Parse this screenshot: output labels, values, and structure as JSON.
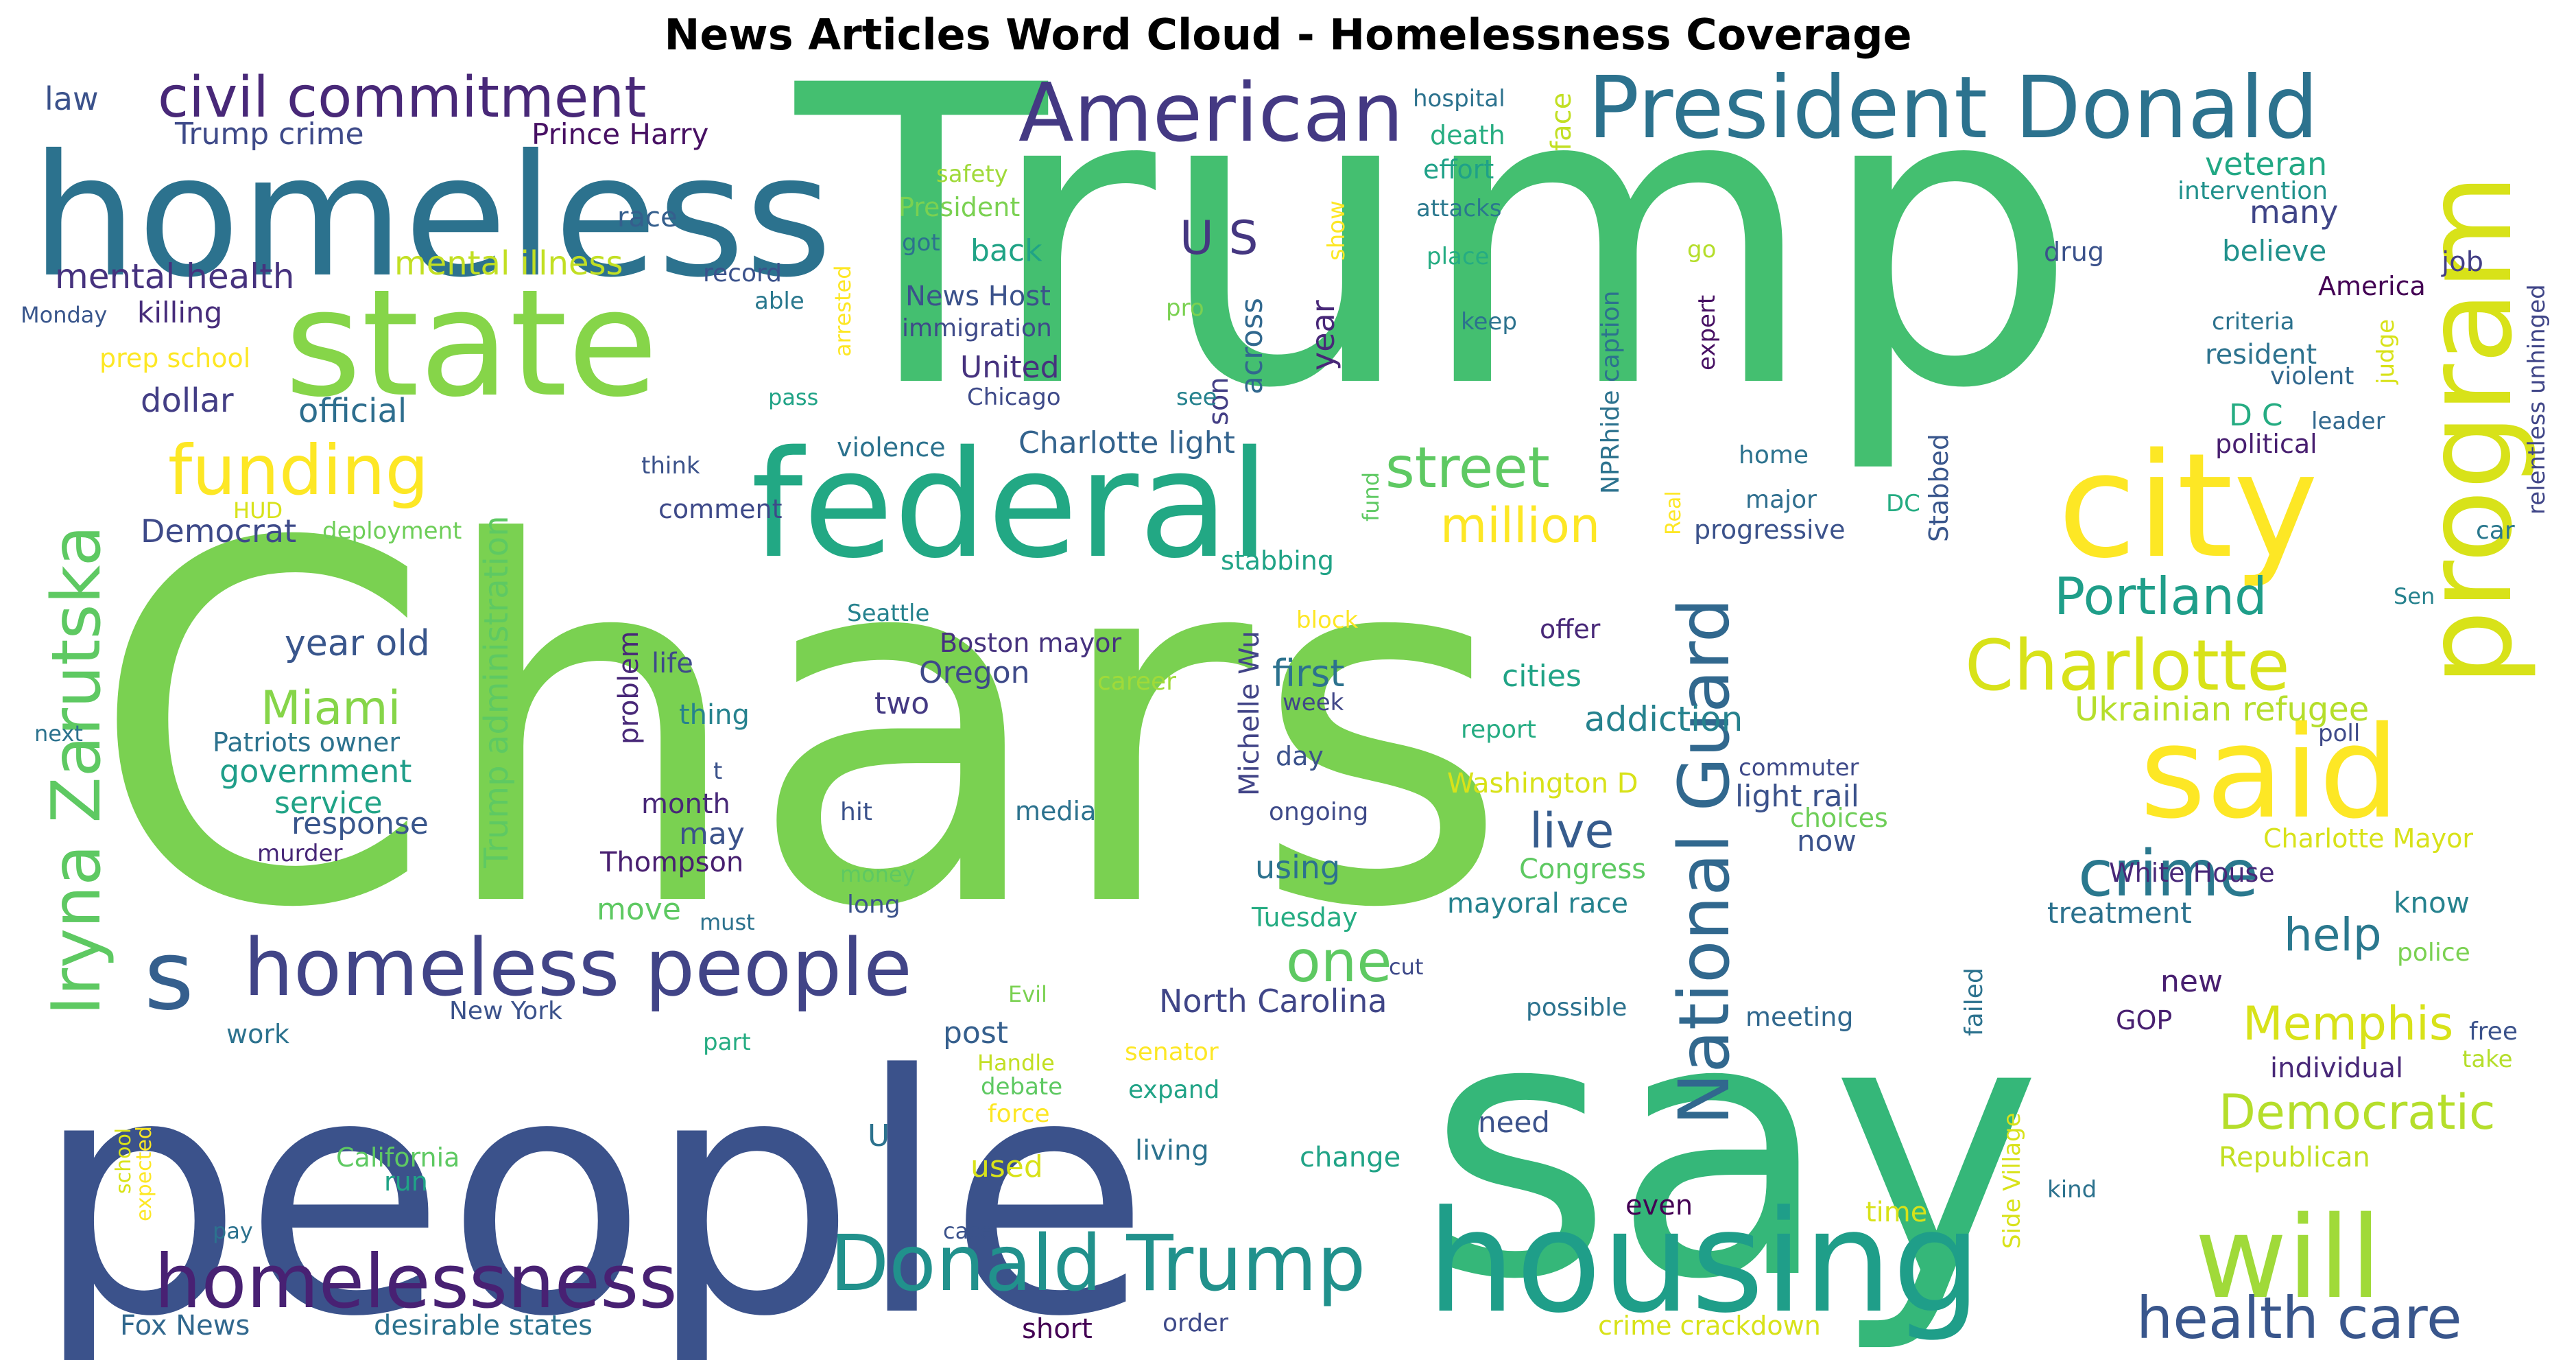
{
  "title": "News Articles Word Cloud - Homelessness Coverage",
  "words": [
    {
      "text": "Chars",
      "color": "#7ad151"
    },
    {
      "text": "Trump",
      "color": "#44bf70"
    },
    {
      "text": "people",
      "color": "#3b528b"
    },
    {
      "text": "say",
      "color": "#35b779"
    },
    {
      "text": "homeless",
      "color": "#2c728e"
    },
    {
      "text": "state",
      "color": "#86d549"
    },
    {
      "text": "federal",
      "color": "#22a884"
    },
    {
      "text": "housing",
      "color": "#1f9e89"
    },
    {
      "text": "city",
      "color": "#fde725"
    },
    {
      "text": "program",
      "color": "#d8e219"
    },
    {
      "text": "said",
      "color": "#fde725"
    },
    {
      "text": "will",
      "color": "#a0da39"
    },
    {
      "text": "President Donald",
      "color": "#2c728e"
    },
    {
      "text": "American",
      "color": "#443983"
    },
    {
      "text": "civil commitment",
      "color": "#482878"
    },
    {
      "text": "National Guard",
      "color": "#31688e"
    },
    {
      "text": "Iryna Zarutska",
      "color": "#5ec962"
    },
    {
      "text": "homeless people",
      "color": "#414487"
    },
    {
      "text": "Donald Trump",
      "color": "#21918c"
    },
    {
      "text": "homelessness",
      "color": "#482173"
    },
    {
      "text": "funding",
      "color": "#fde725"
    },
    {
      "text": "Charlotte",
      "color": "#d8e219"
    },
    {
      "text": "crime",
      "color": "#2a788e"
    },
    {
      "text": "one",
      "color": "#5ec962"
    },
    {
      "text": "s",
      "color": "#355f8d"
    },
    {
      "text": "street",
      "color": "#5ec962"
    },
    {
      "text": "health care",
      "color": "#39568c"
    },
    {
      "text": "Portland",
      "color": "#1f9e89"
    },
    {
      "text": "million",
      "color": "#fde725"
    },
    {
      "text": "Democratic",
      "color": "#b5de2b"
    },
    {
      "text": "Memphis",
      "color": "#d8e219"
    },
    {
      "text": "Miami",
      "color": "#86d549"
    },
    {
      "text": "live",
      "color": "#365c8d"
    },
    {
      "text": "help",
      "color": "#2a788e"
    },
    {
      "text": "U S",
      "color": "#453781"
    },
    {
      "text": "mental health",
      "color": "#46327e"
    },
    {
      "text": "year old",
      "color": "#39568c"
    },
    {
      "text": "Trump administration",
      "color": "#5ec962"
    },
    {
      "text": "Ukrainian refugee",
      "color": "#b5de2b"
    },
    {
      "text": "Charlotte light",
      "color": "#33638d"
    },
    {
      "text": "North Carolina",
      "color": "#404688"
    },
    {
      "text": "addiction",
      "color": "#26828e"
    },
    {
      "text": "mental illness",
      "color": "#c2df23"
    },
    {
      "text": "Prince Harry",
      "color": "#471063"
    },
    {
      "text": "Trump crime",
      "color": "#3e4a89"
    },
    {
      "text": "law",
      "color": "#3b528b"
    },
    {
      "text": "first",
      "color": "#2c728e"
    },
    {
      "text": "government",
      "color": "#1f9e89"
    },
    {
      "text": "Democrat",
      "color": "#3e4a89"
    },
    {
      "text": "dollar",
      "color": "#433e85"
    },
    {
      "text": "official",
      "color": "#2e6e8e"
    },
    {
      "text": "killing",
      "color": "#472d7b"
    },
    {
      "text": "prep school",
      "color": "#fde725"
    },
    {
      "text": "Monday",
      "color": "#39568c"
    },
    {
      "text": "HUD",
      "color": "#d8e219"
    },
    {
      "text": "deployment",
      "color": "#6ece58"
    },
    {
      "text": "back",
      "color": "#20a386"
    },
    {
      "text": "United",
      "color": "#46327e"
    },
    {
      "text": "Chicago",
      "color": "#3e4a89"
    },
    {
      "text": "News Host",
      "color": "#3b528b"
    },
    {
      "text": "immigration",
      "color": "#3e4a89"
    },
    {
      "text": "President",
      "color": "#7ad151"
    },
    {
      "text": "safety",
      "color": "#a0da39"
    },
    {
      "text": "got",
      "color": "#2c728e"
    },
    {
      "text": "race",
      "color": "#355f8d"
    },
    {
      "text": "record",
      "color": "#3b528b"
    },
    {
      "text": "able",
      "color": "#2a788e"
    },
    {
      "text": "arrested",
      "color": "#fde725"
    },
    {
      "text": "pass",
      "color": "#20a386"
    },
    {
      "text": "pro",
      "color": "#7ad151"
    },
    {
      "text": "across",
      "color": "#31688e"
    },
    {
      "text": "son",
      "color": "#433e85"
    },
    {
      "text": "see",
      "color": "#26828e"
    },
    {
      "text": "show",
      "color": "#fde725"
    },
    {
      "text": "year",
      "color": "#482878"
    },
    {
      "text": "hospital",
      "color": "#2c728e"
    },
    {
      "text": "death",
      "color": "#27ad81"
    },
    {
      "text": "effort",
      "color": "#1fa188"
    },
    {
      "text": "attacks",
      "color": "#2a788e"
    },
    {
      "text": "place",
      "color": "#25ac82"
    },
    {
      "text": "keep",
      "color": "#2c728e"
    },
    {
      "text": "face",
      "color": "#c2df23"
    },
    {
      "text": "NPRhide caption",
      "color": "#2c728e"
    },
    {
      "text": "go",
      "color": "#b5de2b"
    },
    {
      "text": "expert",
      "color": "#471063"
    },
    {
      "text": "home",
      "color": "#2c728e"
    },
    {
      "text": "major",
      "color": "#2e6e8e"
    },
    {
      "text": "progressive",
      "color": "#3b528b"
    },
    {
      "text": "Real",
      "color": "#fde725"
    },
    {
      "text": "Stabbed",
      "color": "#39568c"
    },
    {
      "text": "DC",
      "color": "#25ac82"
    },
    {
      "text": "veteran",
      "color": "#22a884"
    },
    {
      "text": "intervention",
      "color": "#21918c"
    },
    {
      "text": "many",
      "color": "#404688"
    },
    {
      "text": "drug",
      "color": "#3b528b"
    },
    {
      "text": "believe",
      "color": "#21918c"
    },
    {
      "text": "America",
      "color": "#440154"
    },
    {
      "text": "job",
      "color": "#433e85"
    },
    {
      "text": "criteria",
      "color": "#2c728e"
    },
    {
      "text": "resident",
      "color": "#2c728e"
    },
    {
      "text": "judge",
      "color": "#d8e219"
    },
    {
      "text": "violent",
      "color": "#31688e"
    },
    {
      "text": "D C",
      "color": "#25ac82"
    },
    {
      "text": "leader",
      "color": "#31688e"
    },
    {
      "text": "political",
      "color": "#481f70"
    },
    {
      "text": "relentless unhinged",
      "color": "#404688"
    },
    {
      "text": "car",
      "color": "#2a788e"
    },
    {
      "text": "Sen",
      "color": "#26828e"
    },
    {
      "text": "poll",
      "color": "#3e4a89"
    },
    {
      "text": "violence",
      "color": "#2c728e"
    },
    {
      "text": "think",
      "color": "#3b528b"
    },
    {
      "text": "comment",
      "color": "#3e4a89"
    },
    {
      "text": "stabbing",
      "color": "#20a386"
    },
    {
      "text": "Seattle",
      "color": "#26828e"
    },
    {
      "text": "block",
      "color": "#fde725"
    },
    {
      "text": "fund",
      "color": "#5ec962"
    },
    {
      "text": "life",
      "color": "#3e4a89"
    },
    {
      "text": "problem",
      "color": "#482878"
    },
    {
      "text": "thing",
      "color": "#26828e"
    },
    {
      "text": "Boston mayor",
      "color": "#46327e"
    },
    {
      "text": "Oregon",
      "color": "#3e4a89"
    },
    {
      "text": "Michelle Wu",
      "color": "#414487"
    },
    {
      "text": "career",
      "color": "#a0da39"
    },
    {
      "text": "two",
      "color": "#443983"
    },
    {
      "text": "week",
      "color": "#404688"
    },
    {
      "text": "t",
      "color": "#3b528b"
    },
    {
      "text": "Patriots owner",
      "color": "#2c728e"
    },
    {
      "text": "service",
      "color": "#20a386"
    },
    {
      "text": "response",
      "color": "#39568c"
    },
    {
      "text": "murder",
      "color": "#482878"
    },
    {
      "text": "month",
      "color": "#482878"
    },
    {
      "text": "may",
      "color": "#3b528b"
    },
    {
      "text": "Thompson",
      "color": "#481f70"
    },
    {
      "text": "hit",
      "color": "#3b528b"
    },
    {
      "text": "media",
      "color": "#2c728e"
    },
    {
      "text": "day",
      "color": "#3b528b"
    },
    {
      "text": "ongoing",
      "color": "#3e4a89"
    },
    {
      "text": "cities",
      "color": "#20a386"
    },
    {
      "text": "report",
      "color": "#25ac82"
    },
    {
      "text": "offer",
      "color": "#482878"
    },
    {
      "text": "Washington D",
      "color": "#d8e219"
    },
    {
      "text": "light rail",
      "color": "#3b528b"
    },
    {
      "text": "commuter",
      "color": "#3e4a89"
    },
    {
      "text": "choices",
      "color": "#6ece58"
    },
    {
      "text": "now",
      "color": "#3b528b"
    },
    {
      "text": "using",
      "color": "#2c728e"
    },
    {
      "text": "Congress",
      "color": "#5ec962"
    },
    {
      "text": "mayoral race",
      "color": "#26828e"
    },
    {
      "text": "Charlotte Mayor",
      "color": "#d8e219"
    },
    {
      "text": "White House",
      "color": "#482878"
    },
    {
      "text": "know",
      "color": "#26828e"
    },
    {
      "text": "treatment",
      "color": "#2c728e"
    },
    {
      "text": "police",
      "color": "#7ad151"
    },
    {
      "text": "new",
      "color": "#481f70"
    },
    {
      "text": "money",
      "color": "#5ec962"
    },
    {
      "text": "long",
      "color": "#3b528b"
    },
    {
      "text": "move",
      "color": "#5ec962"
    },
    {
      "text": "must",
      "color": "#2c728e"
    },
    {
      "text": "Tuesday",
      "color": "#25ac82"
    },
    {
      "text": "cut",
      "color": "#3e4a89"
    },
    {
      "text": "post",
      "color": "#355f8d"
    },
    {
      "text": "Evil",
      "color": "#7ad151"
    },
    {
      "text": "part",
      "color": "#25ac82"
    },
    {
      "text": "Handle",
      "color": "#c2df23"
    },
    {
      "text": "debate",
      "color": "#5ec962"
    },
    {
      "text": "force",
      "color": "#fde725"
    },
    {
      "text": "senator",
      "color": "#fde725"
    },
    {
      "text": "expand",
      "color": "#20a386"
    },
    {
      "text": "possible",
      "color": "#2c728e"
    },
    {
      "text": "meeting",
      "color": "#31688e"
    },
    {
      "text": "failed",
      "color": "#2c728e"
    },
    {
      "text": "GOP",
      "color": "#481f70"
    },
    {
      "text": "free",
      "color": "#3b528b"
    },
    {
      "text": "take",
      "color": "#b5de2b"
    },
    {
      "text": "individual",
      "color": "#482878"
    },
    {
      "text": "Republican",
      "color": "#c2df23"
    },
    {
      "text": "kind",
      "color": "#2c728e"
    },
    {
      "text": "Side Village",
      "color": "#d8e219"
    },
    {
      "text": "New York",
      "color": "#3b528b"
    },
    {
      "text": "work",
      "color": "#2c728e"
    },
    {
      "text": "California",
      "color": "#5ec962"
    },
    {
      "text": "run",
      "color": "#20a386"
    },
    {
      "text": "U",
      "color": "#2c728e"
    },
    {
      "text": "used",
      "color": "#d8e219"
    },
    {
      "text": "living",
      "color": "#2c728e"
    },
    {
      "text": "change",
      "color": "#20a386"
    },
    {
      "text": "need",
      "color": "#3b528b"
    },
    {
      "text": "even",
      "color": "#440154"
    },
    {
      "text": "time",
      "color": "#d8e219"
    },
    {
      "text": "school",
      "color": "#d8e219"
    },
    {
      "text": "expected",
      "color": "#fde725"
    },
    {
      "text": "pay",
      "color": "#2c728e"
    },
    {
      "text": "case",
      "color": "#3b528b"
    },
    {
      "text": "Fox News",
      "color": "#31688e"
    },
    {
      "text": "desirable states",
      "color": "#2c728e"
    },
    {
      "text": "short",
      "color": "#440154"
    },
    {
      "text": "order",
      "color": "#3e4a89"
    },
    {
      "text": "crime crackdown",
      "color": "#d8e219"
    },
    {
      "text": "next",
      "color": "#2c728e"
    }
  ]
}
